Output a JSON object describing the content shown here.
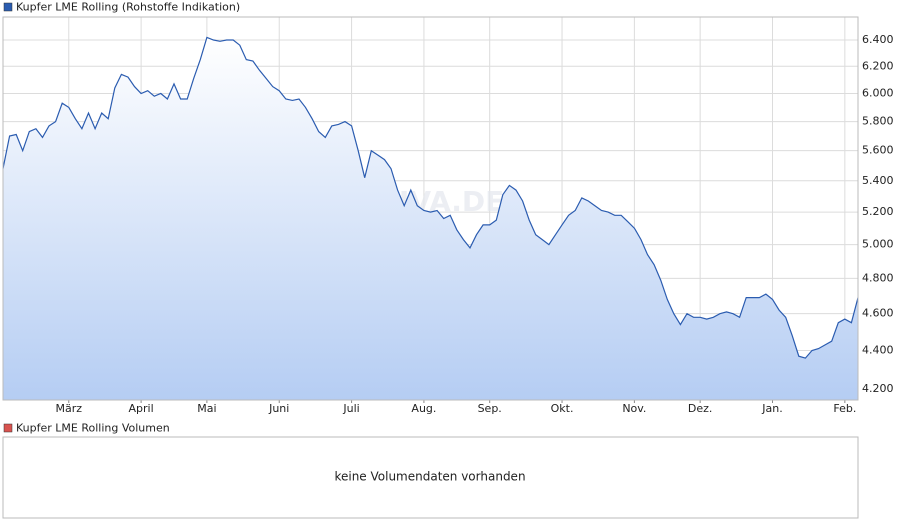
{
  "chart_data": [
    {
      "type": "line",
      "log_scale": true,
      "grid": true,
      "series": [
        {
          "name": "Kupfer LME Rolling (Rohstoffe Indikation)",
          "color": "#2b5cb0",
          "values": [
            5480,
            5700,
            5710,
            5600,
            5730,
            5750,
            5690,
            5770,
            5800,
            5930,
            5900,
            5820,
            5750,
            5860,
            5750,
            5860,
            5820,
            6040,
            6140,
            6120,
            6050,
            6000,
            6020,
            5980,
            6000,
            5960,
            6070,
            5960,
            5960,
            6110,
            6250,
            6420,
            6400,
            6390,
            6400,
            6400,
            6360,
            6250,
            6240,
            6170,
            6110,
            6050,
            6020,
            5960,
            5950,
            5960,
            5900,
            5820,
            5730,
            5690,
            5770,
            5780,
            5800,
            5770,
            5600,
            5420,
            5600,
            5570,
            5540,
            5480,
            5340,
            5240,
            5340,
            5240,
            5210,
            5200,
            5210,
            5160,
            5180,
            5090,
            5030,
            4980,
            5060,
            5120,
            5120,
            5150,
            5310,
            5370,
            5340,
            5270,
            5150,
            5060,
            5030,
            5000,
            5060,
            5120,
            5180,
            5210,
            5290,
            5270,
            5240,
            5210,
            5200,
            5180,
            5180,
            5140,
            5100,
            5030,
            4940,
            4880,
            4790,
            4680,
            4600,
            4540,
            4600,
            4580,
            4580,
            4570,
            4580,
            4600,
            4610,
            4600,
            4580,
            4690,
            4690,
            4690,
            4710,
            4680,
            4620,
            4580,
            4480,
            4370,
            4360,
            4400,
            4410,
            4430,
            4450,
            4550,
            4570,
            4550,
            4690
          ]
        }
      ],
      "xlim": [
        0,
        130
      ],
      "xticks": [
        {
          "value": 10,
          "label": "März"
        },
        {
          "value": 21,
          "label": "April"
        },
        {
          "value": 31,
          "label": "Mai"
        },
        {
          "value": 42,
          "label": "Juni"
        },
        {
          "value": 53,
          "label": "Juli"
        },
        {
          "value": 64,
          "label": "Aug."
        },
        {
          "value": 74,
          "label": "Sep."
        },
        {
          "value": 85,
          "label": "Okt."
        },
        {
          "value": 96,
          "label": "Nov."
        },
        {
          "value": 106,
          "label": "Dez."
        },
        {
          "value": 117,
          "label": "Jan."
        },
        {
          "value": 128,
          "label": "Feb."
        }
      ],
      "ylim": [
        4145,
        6580
      ],
      "yticks": [
        {
          "value": 4200,
          "label": "4.200"
        },
        {
          "value": 4400,
          "label": "4.400"
        },
        {
          "value": 4600,
          "label": "4.600"
        },
        {
          "value": 4800,
          "label": "4.800"
        },
        {
          "value": 5000,
          "label": "5.000"
        },
        {
          "value": 5200,
          "label": "5.200"
        },
        {
          "value": 5400,
          "label": "5.400"
        },
        {
          "value": 5600,
          "label": "5.600"
        },
        {
          "value": 5800,
          "label": "5.800"
        },
        {
          "value": 6000,
          "label": "6.000"
        },
        {
          "value": 6200,
          "label": "6.200"
        },
        {
          "value": 6400,
          "label": "6.400"
        }
      ],
      "watermark": "ARIVA.DE"
    },
    {
      "type": "empty",
      "series": [
        {
          "name": "Kupfer LME Rolling Volumen",
          "color": "#d9534f"
        }
      ],
      "message": "keine Volumendaten vorhanden"
    }
  ]
}
